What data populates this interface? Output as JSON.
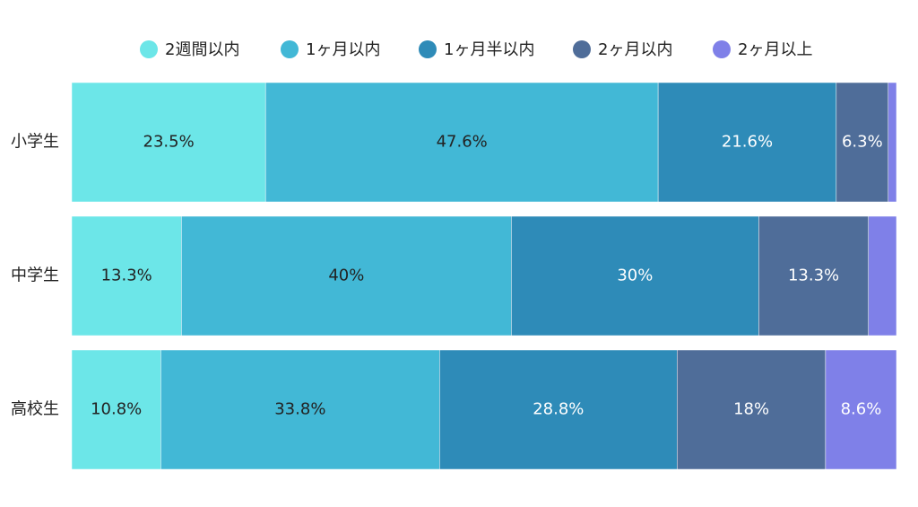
{
  "chart_data": {
    "type": "stacked-bar-horizontal",
    "categories": [
      "小学生",
      "中学生",
      "高校生"
    ],
    "xlim": [
      0,
      100
    ],
    "legend": "top",
    "series": [
      {
        "name": "2週間以内",
        "color": "#6ce6e8",
        "values": [
          23.5,
          13.3,
          10.8
        ],
        "value_labels": [
          "23.5%",
          "13.3%",
          "10.8%"
        ]
      },
      {
        "name": "1ヶ月以内",
        "color": "#42b8d6",
        "values": [
          47.6,
          40,
          33.8
        ],
        "value_labels": [
          "47.6%",
          "40%",
          "33.8%"
        ]
      },
      {
        "name": "1ヶ月半以内",
        "color": "#2e8bb8",
        "values": [
          21.6,
          30,
          28.8
        ],
        "value_labels": [
          "21.6%",
          "30%",
          "28.8%"
        ]
      },
      {
        "name": "2ヶ月以内",
        "color": "#4f6d99",
        "values": [
          6.3,
          13.3,
          18
        ],
        "value_labels": [
          "6.3%",
          "13.3%",
          "18%"
        ]
      },
      {
        "name": "2ヶ月以上",
        "color": "#7f80e8",
        "values": [
          1.0,
          3.4,
          8.6
        ],
        "value_labels": [
          null,
          null,
          "8.6%"
        ]
      }
    ]
  }
}
